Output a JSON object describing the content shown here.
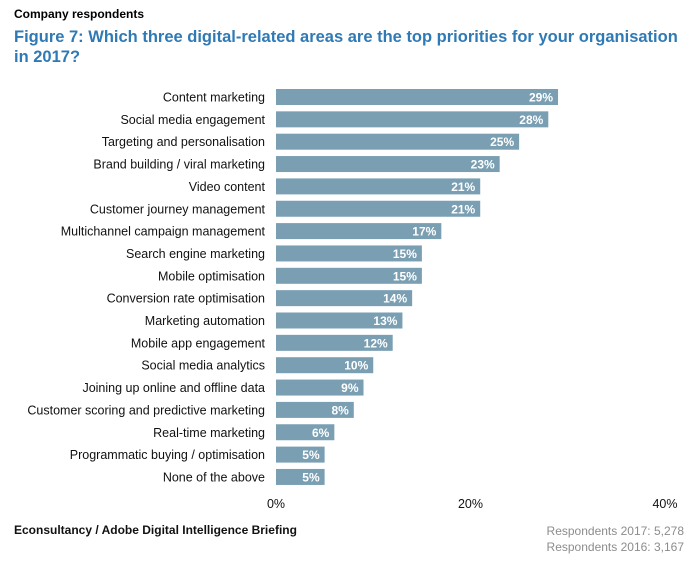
{
  "header": {
    "respondents_label": "Company respondents",
    "title": "Figure 7: Which three digital-related areas are the top priorities for your organisation in 2017?"
  },
  "footer": {
    "source": "Econsultancy / Adobe Digital Intelligence Briefing",
    "respondents_2017": "Respondents 2017: 5,278",
    "respondents_2016": "Respondents 2016: 3,167"
  },
  "colors": {
    "bar": "#7a9fb3",
    "bar_label": "#ffffff",
    "title": "#2f7ab5"
  },
  "chart_data": {
    "type": "bar",
    "orientation": "horizontal",
    "categories": [
      "Content marketing",
      "Social media engagement",
      "Targeting and personalisation",
      "Brand building / viral marketing",
      "Video content",
      "Customer journey management",
      "Multichannel campaign management",
      "Search engine marketing",
      "Mobile optimisation",
      "Conversion rate optimisation",
      "Marketing automation",
      "Mobile app engagement",
      "Social media analytics",
      "Joining up online and offline data",
      "Customer scoring and predictive marketing",
      "Real-time marketing",
      "Programmatic buying / optimisation",
      "None of the above"
    ],
    "values": [
      29,
      28,
      25,
      23,
      21,
      21,
      17,
      15,
      15,
      14,
      13,
      12,
      10,
      9,
      8,
      6,
      5,
      5
    ],
    "value_labels": [
      "29%",
      "28%",
      "25%",
      "23%",
      "21%",
      "21%",
      "17%",
      "15%",
      "15%",
      "14%",
      "13%",
      "12%",
      "10%",
      "9%",
      "8%",
      "6%",
      "5%",
      "5%"
    ],
    "xlim": [
      0,
      40
    ],
    "x_ticks": [
      0,
      20,
      40
    ],
    "x_tick_labels": [
      "0%",
      "20%",
      "40%"
    ],
    "grid": false,
    "legend": "none"
  }
}
